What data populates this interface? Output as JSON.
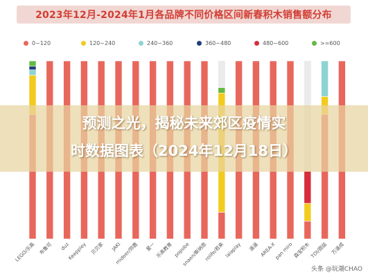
{
  "chart_data": {
    "type": "bar",
    "stacked": true,
    "title": "2023年12月-2024年1月各品牌不同价格区间新春积木销售额分布",
    "categories": [
      "LEGO/乐高",
      "布鲁可",
      "duz",
      "Keeppley",
      "贝贝家",
      "JAKI",
      "mideer/弥鹿",
      "星一",
      "乐高教育",
      "popobe",
      "snaen/斯纳恩",
      "rolife/若来",
      "lalaplay",
      "遥遥",
      "AREA-X",
      "pan miro",
      "森宝积木",
      "TOI/图益",
      "万遥成"
    ],
    "series": [
      {
        "name": "0~120",
        "color": "#e8675c",
        "values": [
          70,
          100,
          100,
          100,
          100,
          100,
          100,
          100,
          100,
          100,
          100,
          15,
          100,
          100,
          100,
          100,
          10,
          70,
          100
        ]
      },
      {
        "name": "120~240",
        "color": "#f2cb1f",
        "values": [
          22,
          0,
          0,
          0,
          0,
          0,
          0,
          0,
          0,
          0,
          0,
          67,
          0,
          0,
          0,
          0,
          10,
          10,
          0
        ]
      },
      {
        "name": "240~360",
        "color": "#8ed3d3",
        "values": [
          3,
          0,
          0,
          0,
          0,
          0,
          0,
          0,
          0,
          0,
          0,
          0,
          0,
          0,
          0,
          0,
          0,
          20,
          0
        ]
      },
      {
        "name": "360~480",
        "color": "#1f3f7a",
        "values": [
          2,
          0,
          0,
          0,
          0,
          0,
          0,
          0,
          0,
          0,
          0,
          0,
          0,
          0,
          0,
          0,
          0,
          0,
          0
        ]
      },
      {
        "name": "480~600",
        "color": "#d62d3a",
        "values": [
          0,
          0,
          0,
          0,
          0,
          0,
          0,
          0,
          0,
          0,
          0,
          0,
          0,
          0,
          0,
          0,
          18,
          0,
          0
        ]
      },
      {
        "name": ">=600",
        "color": "#63b944",
        "values": [
          3,
          0,
          0,
          0,
          0,
          0,
          0,
          0,
          0,
          0,
          0,
          3,
          0,
          0,
          0,
          0,
          0,
          0,
          0
        ]
      }
    ],
    "ylim": [
      0,
      100
    ],
    "grid": false,
    "legend_position": "top"
  },
  "overlay": {
    "line1": "预测之光，揭秘未来郊区疫情实",
    "line2": "时数据图表（2024年12月18日）"
  },
  "watermark": "头条 @玩潮CHAO",
  "colors": {
    "background": "#ffffff",
    "title_bg": "#f1d7d3",
    "title_text": "#d13d33",
    "track": "#ebebeb"
  }
}
